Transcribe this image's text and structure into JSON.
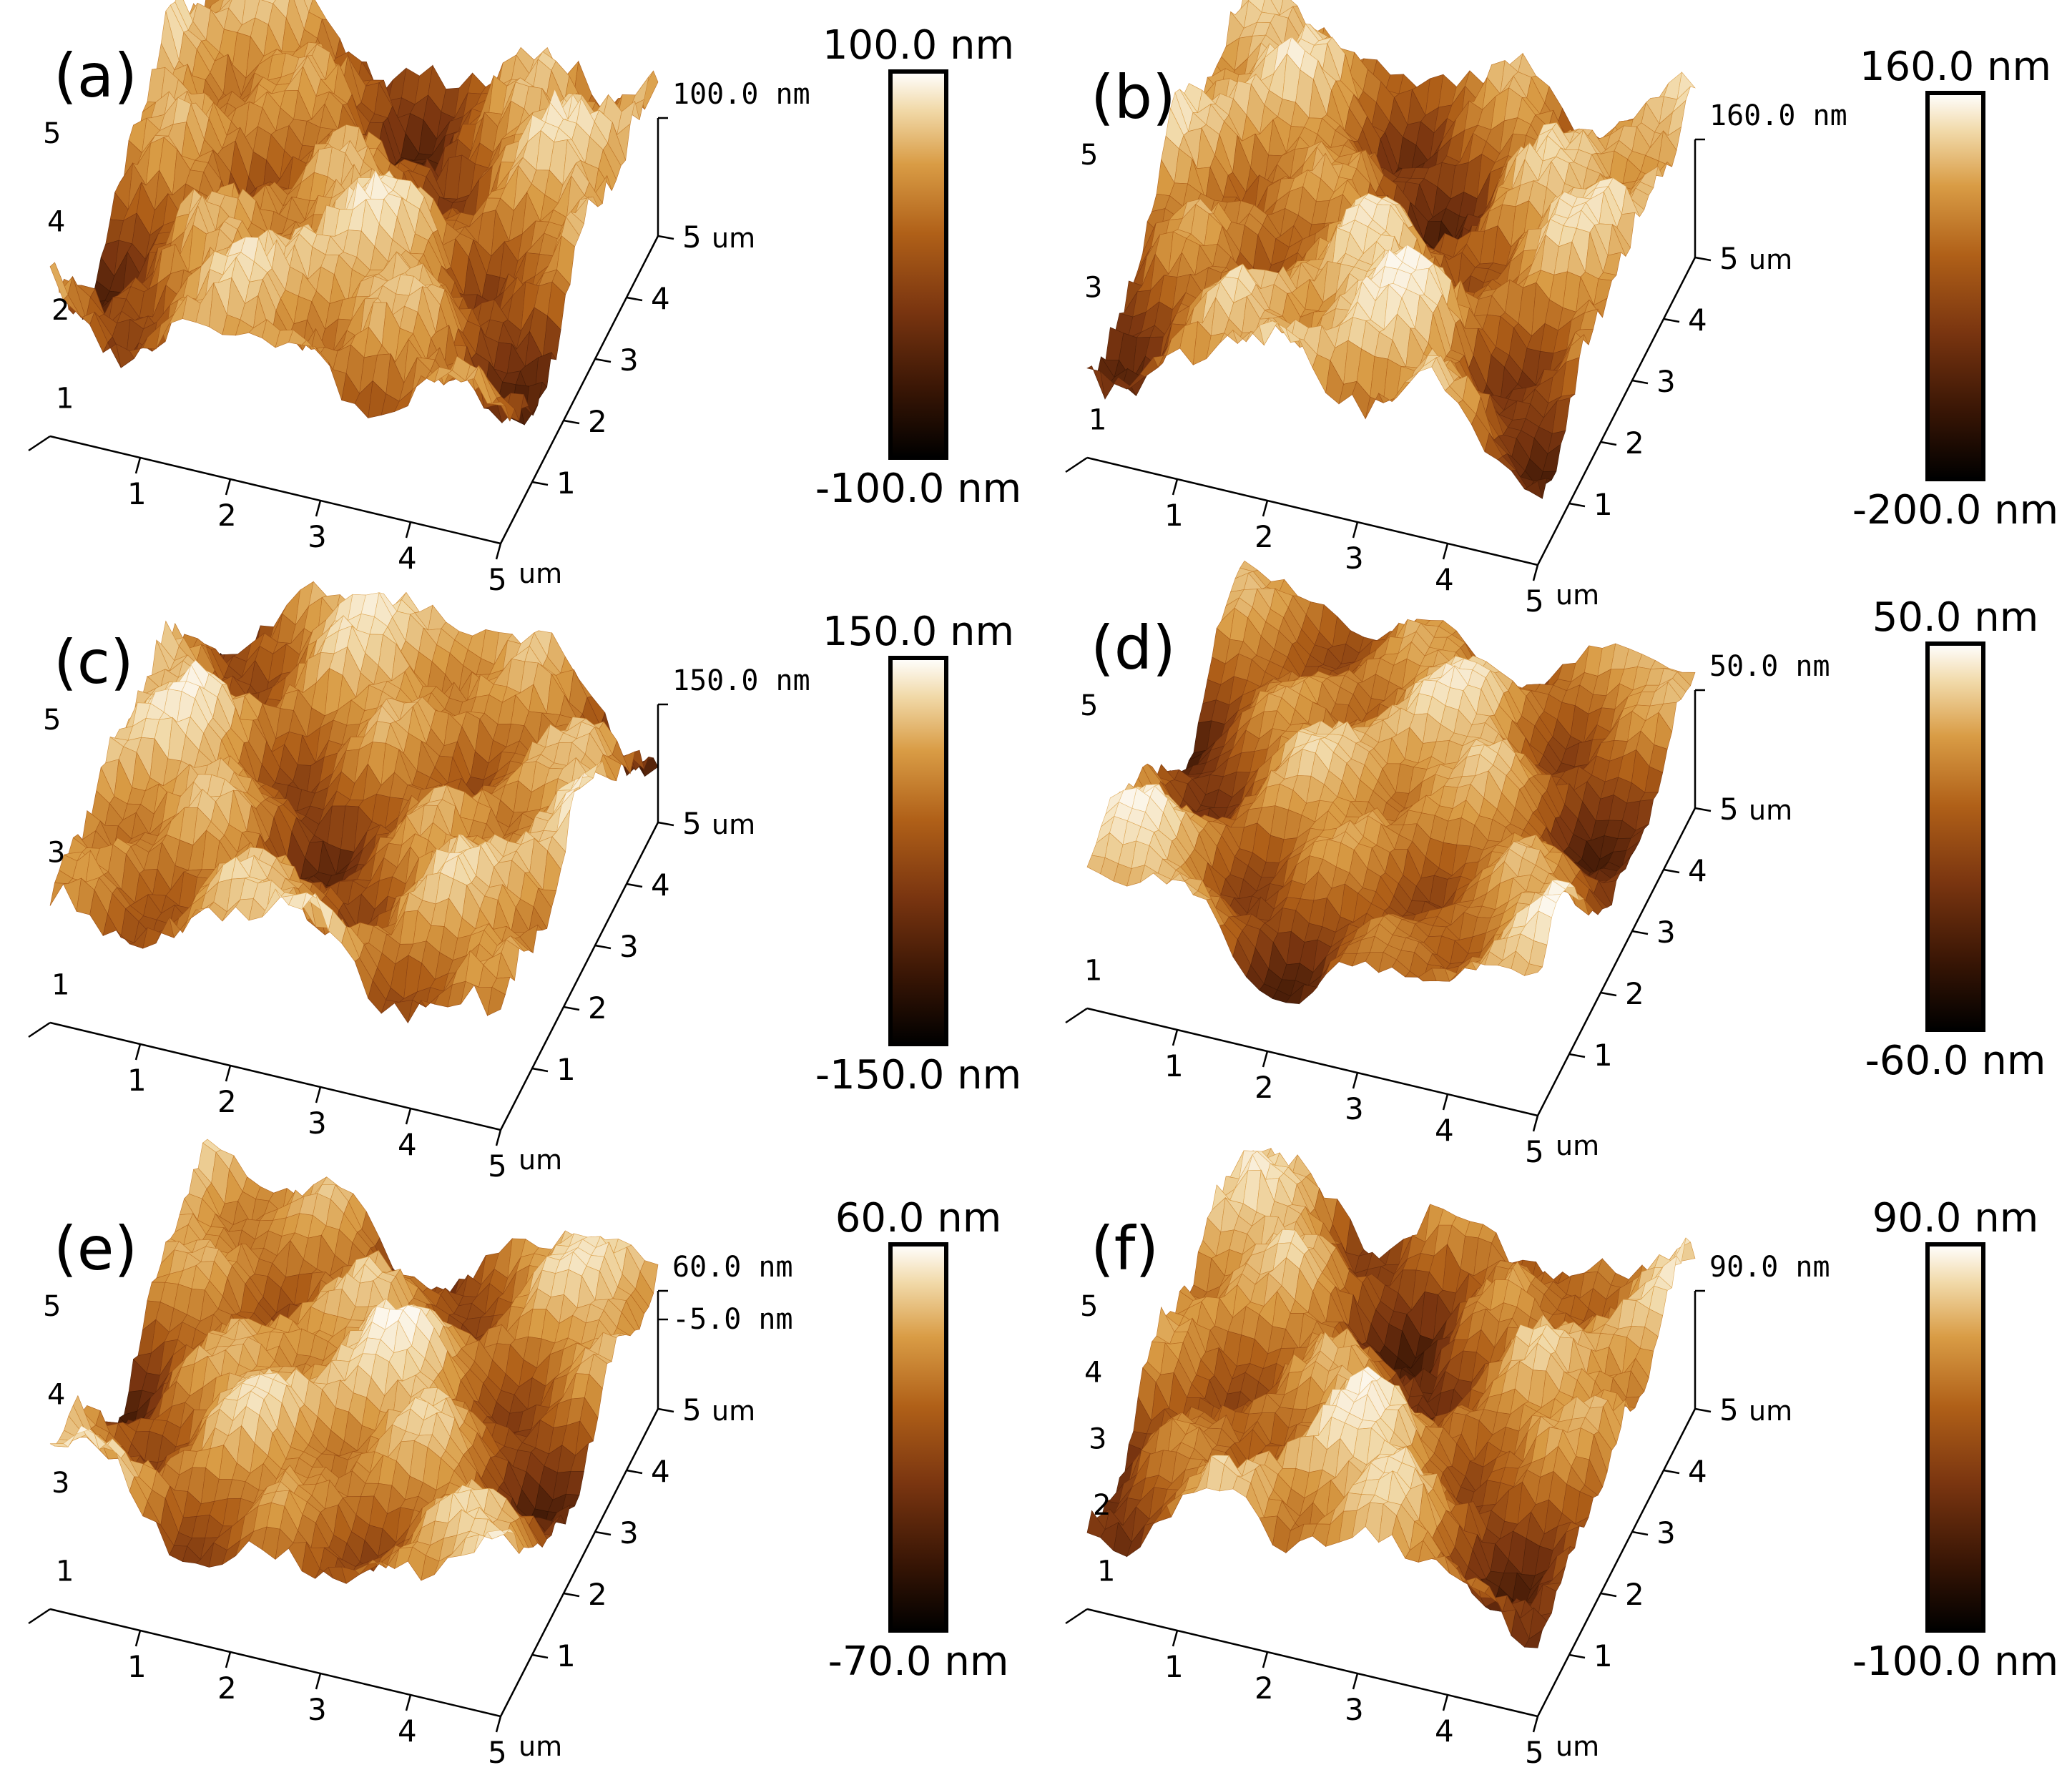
{
  "axis_unit": "um",
  "tick_values": [
    "1",
    "2",
    "3",
    "4",
    "5"
  ],
  "colors": {
    "colormap": [
      "#000000",
      "#3a1605",
      "#7a3510",
      "#b06018",
      "#d99c45",
      "#f1d9a8",
      "#ffffff"
    ],
    "surface_accent": "#7a1f1c",
    "axis": "#000000"
  },
  "panels": [
    {
      "label": "(a)",
      "scale_max": "100.0 nm",
      "scale_min": "-100.0 nm",
      "z_max": "100.0 nm",
      "z_mid": "",
      "roughness": 0.8,
      "seed": 11,
      "left_ticks": [
        "5",
        "4",
        "2",
        "1"
      ]
    },
    {
      "label": "(b)",
      "scale_max": "160.0 nm",
      "scale_min": "-200.0 nm",
      "z_max": "160.0 nm",
      "z_mid": "",
      "roughness": 0.65,
      "seed": 23,
      "left_ticks": [
        "5",
        "3",
        "1"
      ]
    },
    {
      "label": "(c)",
      "scale_max": "150.0 nm",
      "scale_min": "-150.0 nm",
      "z_max": "150.0 nm",
      "z_mid": "",
      "roughness": 0.65,
      "seed": 37,
      "left_ticks": [
        "5",
        "3",
        "1"
      ]
    },
    {
      "label": "(d)",
      "scale_max": "50.0 nm",
      "scale_min": "-60.0 nm",
      "z_max": "50.0 nm",
      "z_mid": "",
      "roughness": 0.45,
      "seed": 41,
      "left_ticks": [
        "5",
        "1"
      ]
    },
    {
      "label": "(e)",
      "scale_max": "60.0 nm",
      "scale_min": "-70.0 nm",
      "z_max": "60.0 nm",
      "z_mid": "-5.0 nm",
      "roughness": 0.55,
      "seed": 53,
      "left_ticks": [
        "5",
        "4",
        "3",
        "1"
      ]
    },
    {
      "label": "(f)",
      "scale_max": "90.0 nm",
      "scale_min": "-100.0 nm",
      "z_max": "90.0 nm",
      "z_mid": "",
      "roughness": 0.6,
      "seed": 67,
      "left_ticks": [
        "5",
        "4",
        "3",
        "2",
        "1"
      ]
    }
  ]
}
